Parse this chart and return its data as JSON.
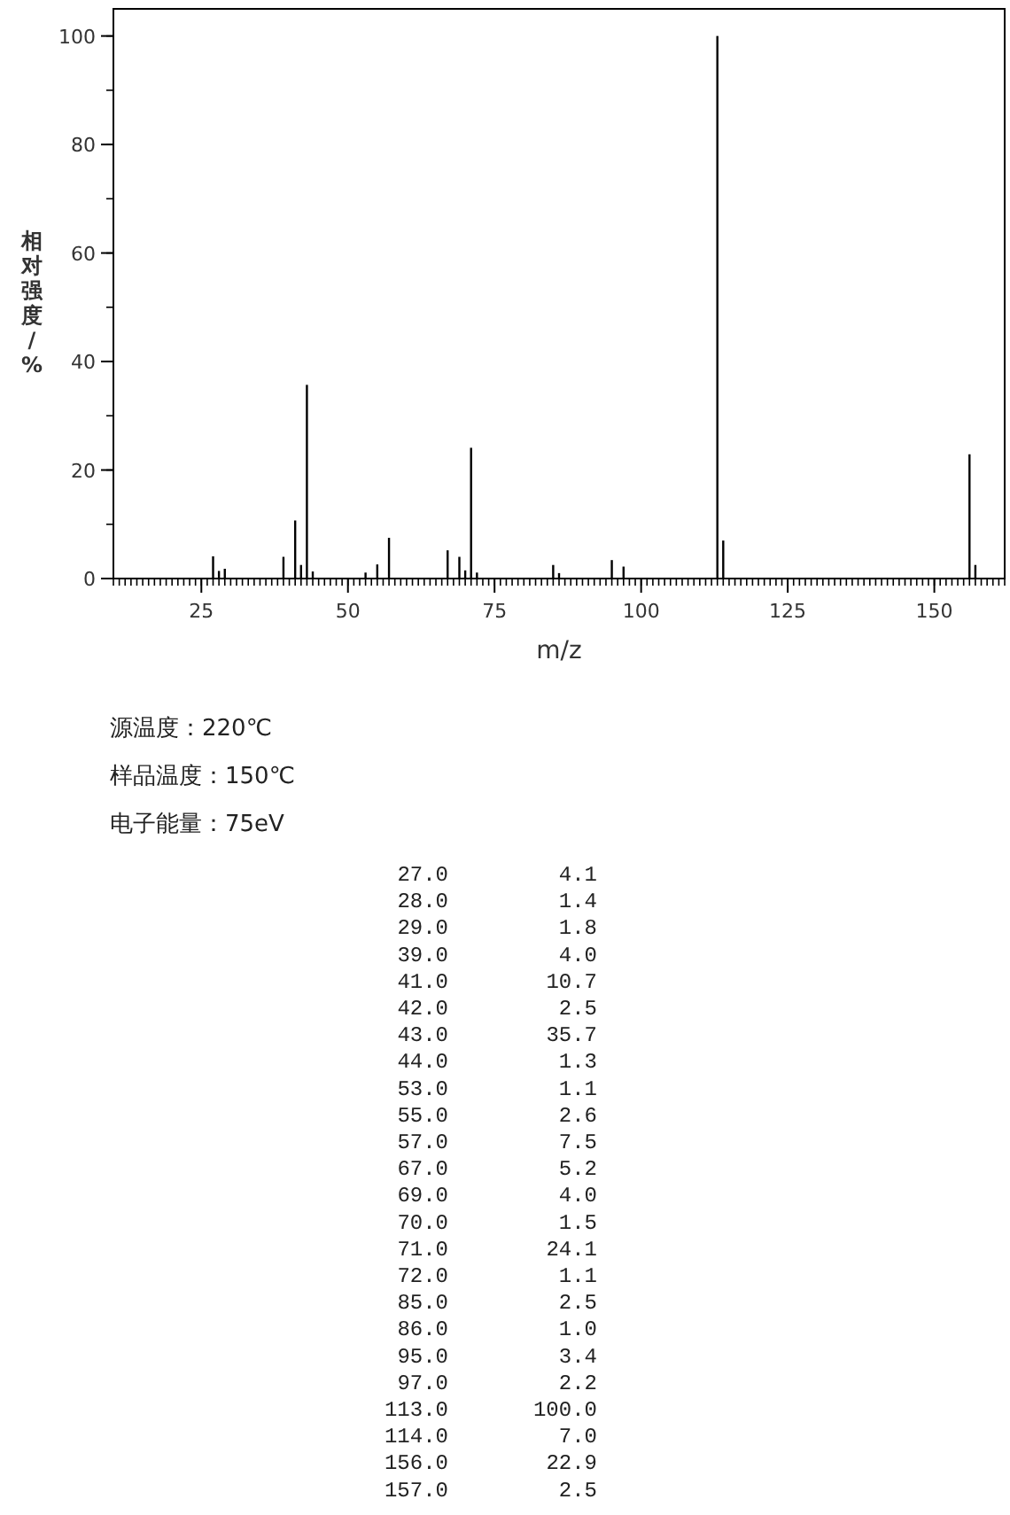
{
  "chart_data": [
    {
      "type": "bar",
      "xlabel": "m/z",
      "ylabel": "相对强度/%",
      "x": [
        27,
        28,
        29,
        39,
        41,
        42,
        43,
        44,
        53,
        55,
        57,
        67,
        69,
        70,
        71,
        72,
        85,
        86,
        95,
        97,
        113,
        114,
        156,
        157
      ],
      "series": [
        {
          "color": "#000000",
          "values": [
            4.1,
            1.4,
            1.8,
            4.0,
            10.7,
            2.5,
            35.7,
            1.3,
            1.1,
            2.6,
            7.5,
            5.2,
            4.0,
            1.5,
            24.1,
            1.1,
            2.5,
            1.0,
            3.4,
            2.2,
            100.0,
            7.0,
            22.9,
            2.5
          ]
        }
      ],
      "xlim": [
        10,
        162
      ],
      "xticks": [
        25,
        50,
        75,
        100,
        125,
        150
      ],
      "ylim": [
        0,
        105
      ],
      "yticks": [
        0,
        20,
        40,
        60,
        80,
        100
      ],
      "annotations": [
        "源温度：220℃",
        "样品温度：150℃",
        "电子能量：75eV"
      ]
    },
    {
      "type": "other",
      "categories": [
        "27.0",
        "28.0",
        "29.0",
        "39.0",
        "41.0",
        "42.0",
        "43.0",
        "44.0",
        "53.0",
        "55.0",
        "57.0",
        "67.0",
        "69.0",
        "70.0",
        "71.0",
        "72.0",
        "85.0",
        "86.0",
        "95.0",
        "97.0",
        "113.0",
        "114.0",
        "156.0",
        "157.0"
      ],
      "value_labels": [
        "4.1",
        "1.4",
        "1.8",
        "4.0",
        "10.7",
        "2.5",
        "35.7",
        "1.3",
        "1.1",
        "2.6",
        "7.5",
        "5.2",
        "4.0",
        "1.5",
        "24.1",
        "1.1",
        "2.5",
        "1.0",
        "3.4",
        "2.2",
        "100.0",
        "7.0",
        "22.9",
        "2.5"
      ]
    }
  ]
}
